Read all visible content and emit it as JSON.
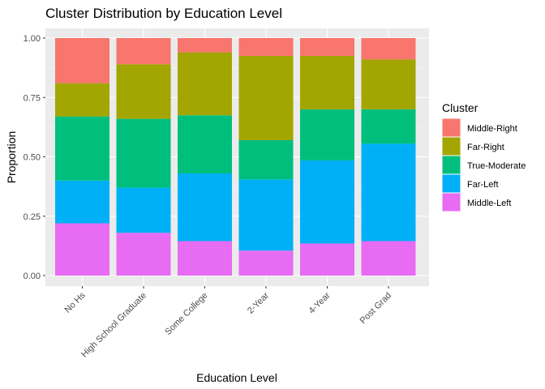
{
  "chart_data": {
    "type": "bar",
    "stacked": true,
    "title": "Cluster Distribution by Education Level",
    "xlabel": "Education Level",
    "ylabel": "Proportion",
    "ylim": [
      0,
      1
    ],
    "yticks": [
      "0.00",
      "0.25",
      "0.50",
      "0.75",
      "1.00"
    ],
    "ytick_values": [
      0,
      0.25,
      0.5,
      0.75,
      1.0
    ],
    "categories": [
      "No Hs",
      "High School Graduate",
      "Some College",
      "2-Year",
      "4-Year",
      "Post Grad"
    ],
    "legend_title": "Cluster",
    "legend_position": "right",
    "grid": true,
    "stack_order_bottom_to_top": [
      "Middle-Left",
      "Far-Left",
      "True-Moderate",
      "Far-Right",
      "Middle-Right"
    ],
    "series": [
      {
        "name": "Middle-Right",
        "color": "#F8766D",
        "values": [
          0.19,
          0.11,
          0.06,
          0.075,
          0.075,
          0.09
        ]
      },
      {
        "name": "Far-Right",
        "color": "#A3A500",
        "values": [
          0.14,
          0.23,
          0.265,
          0.355,
          0.225,
          0.21
        ]
      },
      {
        "name": "True-Moderate",
        "color": "#00BF7D",
        "values": [
          0.27,
          0.29,
          0.245,
          0.165,
          0.215,
          0.145
        ]
      },
      {
        "name": "Far-Left",
        "color": "#00B0F6",
        "values": [
          0.18,
          0.19,
          0.285,
          0.3,
          0.35,
          0.41
        ]
      },
      {
        "name": "Middle-Left",
        "color": "#E76BF3",
        "values": [
          0.22,
          0.18,
          0.145,
          0.105,
          0.135,
          0.145
        ]
      }
    ]
  }
}
